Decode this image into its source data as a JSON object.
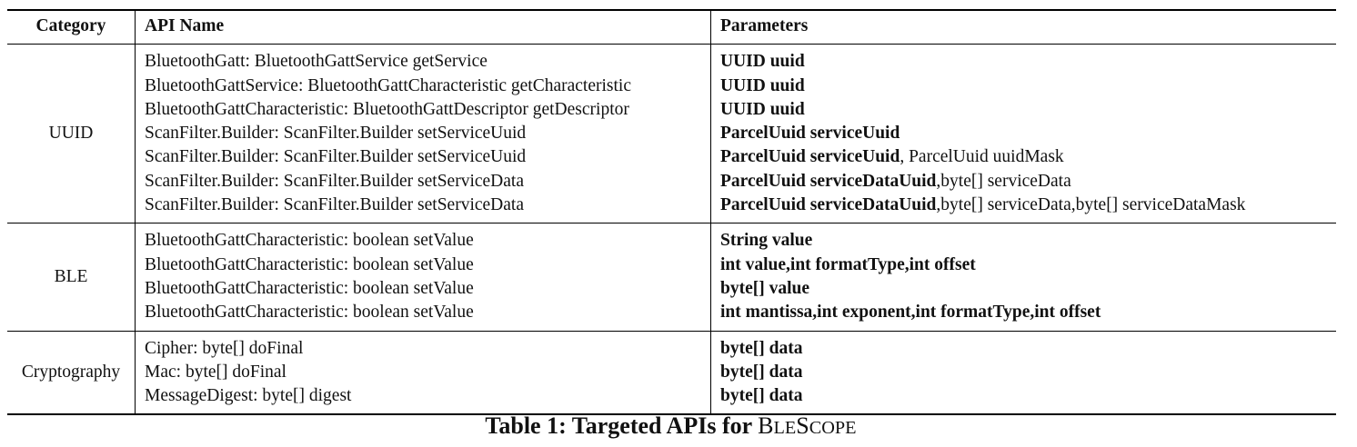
{
  "table": {
    "headers": {
      "category": "Category",
      "api_name": "API Name",
      "parameters": "Parameters"
    },
    "groups": [
      {
        "category": "UUID",
        "rows": [
          {
            "api": "BluetoothGatt: BluetoothGattService getService",
            "params": [
              {
                "text": "UUID uuid",
                "bold": true
              }
            ]
          },
          {
            "api": "BluetoothGattService: BluetoothGattCharacteristic getCharacteristic",
            "params": [
              {
                "text": "UUID uuid",
                "bold": true
              }
            ]
          },
          {
            "api": "BluetoothGattCharacteristic: BluetoothGattDescriptor getDescriptor",
            "params": [
              {
                "text": "UUID uuid",
                "bold": true
              }
            ]
          },
          {
            "api": "ScanFilter.Builder: ScanFilter.Builder setServiceUuid",
            "params": [
              {
                "text": "ParcelUuid serviceUuid",
                "bold": true
              }
            ]
          },
          {
            "api": "ScanFilter.Builder: ScanFilter.Builder setServiceUuid",
            "params": [
              {
                "text": "ParcelUuid serviceUuid",
                "bold": true
              },
              {
                "text": ", ParcelUuid uuidMask",
                "bold": false
              }
            ]
          },
          {
            "api": "ScanFilter.Builder: ScanFilter.Builder setServiceData",
            "params": [
              {
                "text": "ParcelUuid serviceDataUuid",
                "bold": true
              },
              {
                "text": ",byte[] serviceData",
                "bold": false
              }
            ]
          },
          {
            "api": "ScanFilter.Builder: ScanFilter.Builder setServiceData",
            "params": [
              {
                "text": "ParcelUuid serviceDataUuid",
                "bold": true
              },
              {
                "text": ",byte[] serviceData,byte[] serviceDataMask",
                "bold": false
              }
            ]
          }
        ]
      },
      {
        "category": "BLE",
        "rows": [
          {
            "api": "BluetoothGattCharacteristic: boolean setValue",
            "params": [
              {
                "text": "String value",
                "bold": true
              }
            ]
          },
          {
            "api": "BluetoothGattCharacteristic: boolean setValue",
            "params": [
              {
                "text": "int value,int formatType,int offset",
                "bold": true
              }
            ]
          },
          {
            "api": "BluetoothGattCharacteristic: boolean setValue",
            "params": [
              {
                "text": "byte[] value",
                "bold": true
              }
            ]
          },
          {
            "api": "BluetoothGattCharacteristic: boolean setValue",
            "params": [
              {
                "text": "int mantissa,int exponent,int formatType,int offset",
                "bold": true
              }
            ]
          }
        ]
      },
      {
        "category": "Cryptography",
        "rows": [
          {
            "api": "Cipher: byte[] doFinal",
            "params": [
              {
                "text": "byte[] data",
                "bold": true
              }
            ]
          },
          {
            "api": "Mac: byte[] doFinal",
            "params": [
              {
                "text": "byte[] data",
                "bold": true
              }
            ]
          },
          {
            "api": "MessageDigest: byte[] digest",
            "params": [
              {
                "text": "byte[] data",
                "bold": true
              }
            ]
          }
        ]
      }
    ]
  },
  "caption": {
    "prefix": "Table 1: Targeted APIs for ",
    "brand": "BleScope",
    "brand_parts": [
      {
        "text": "B",
        "small": false
      },
      {
        "text": "le",
        "small": true
      },
      {
        "text": "S",
        "small": false
      },
      {
        "text": "cope",
        "small": true
      }
    ]
  }
}
